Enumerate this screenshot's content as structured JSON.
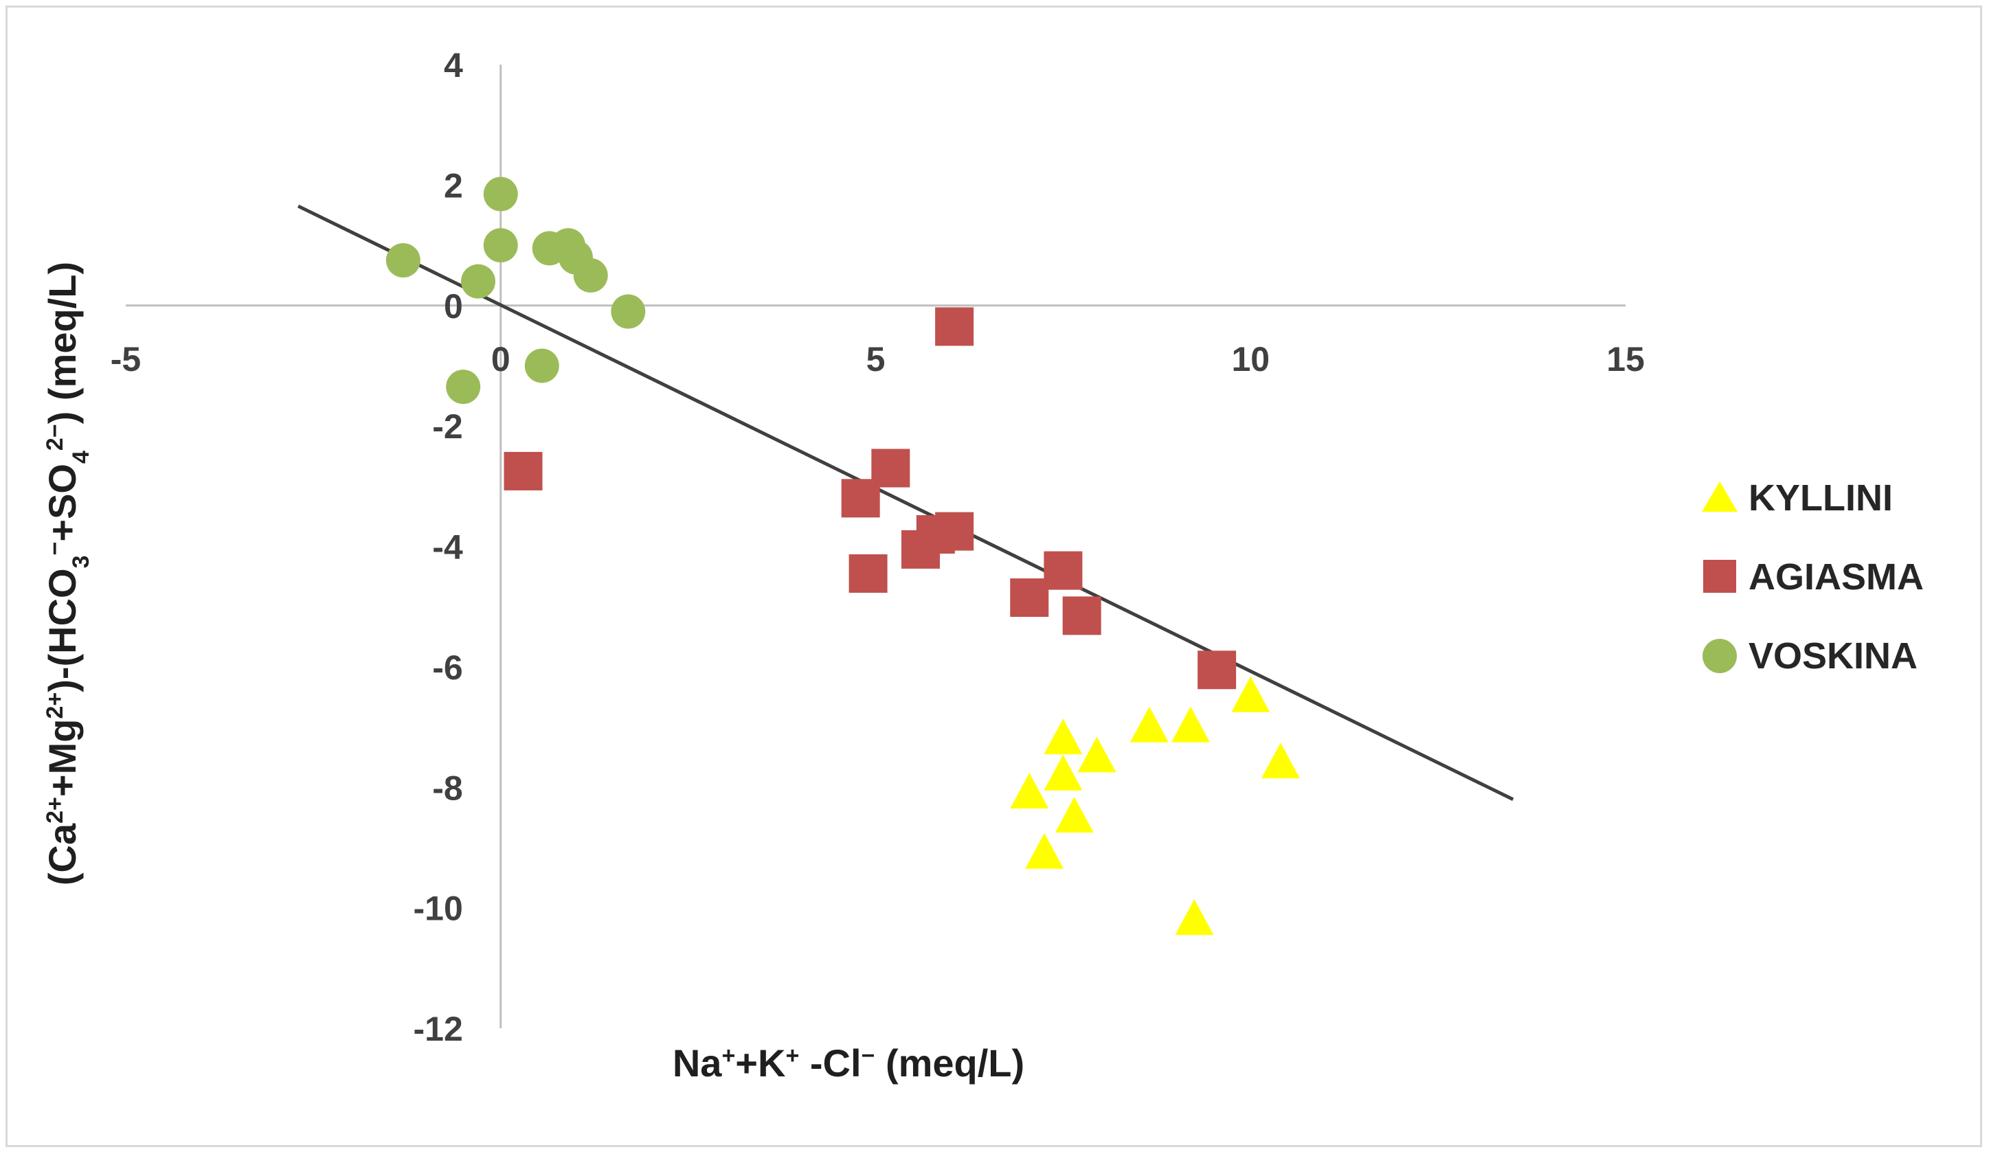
{
  "chart_data": {
    "type": "scatter",
    "title": "",
    "xlabel_parts": [
      "Na",
      "+",
      "+K",
      "+",
      " -Cl",
      "−",
      " (meq/L)"
    ],
    "ylabel_parts": [
      "(Ca",
      "2+",
      "+Mg",
      "2+",
      ")-(HCO",
      "3",
      "−",
      "+SO",
      "4",
      "2−",
      ") (meq/L)"
    ],
    "xlim": [
      -5,
      15
    ],
    "ylim": [
      -12,
      4
    ],
    "x_ticks": [
      -5,
      0,
      5,
      10,
      15
    ],
    "y_ticks": [
      4,
      2,
      0,
      -2,
      -4,
      -6,
      -8,
      -10,
      -12
    ],
    "legend_position": "right",
    "series": [
      {
        "name": "KYLLINI",
        "marker": "triangle",
        "color": "#ffff00",
        "points": [
          [
            7.5,
            -7.2
          ],
          [
            7.5,
            -7.8
          ],
          [
            7.05,
            -8.1
          ],
          [
            7.65,
            -8.5
          ],
          [
            7.95,
            -7.5
          ],
          [
            8.65,
            -7.0
          ],
          [
            9.2,
            -7.0
          ],
          [
            10.0,
            -6.5
          ],
          [
            10.4,
            -7.6
          ],
          [
            7.25,
            -9.1
          ],
          [
            9.25,
            -10.2
          ]
        ]
      },
      {
        "name": "AGIASMA",
        "marker": "square",
        "color": "#c0504d",
        "points": [
          [
            0.3,
            -2.75
          ],
          [
            4.8,
            -3.2
          ],
          [
            4.9,
            -4.45
          ],
          [
            5.2,
            -2.7
          ],
          [
            5.6,
            -4.05
          ],
          [
            5.8,
            -3.8
          ],
          [
            6.05,
            -3.75
          ],
          [
            6.05,
            -0.35
          ],
          [
            7.05,
            -4.85
          ],
          [
            7.5,
            -4.4
          ],
          [
            7.75,
            -5.15
          ],
          [
            9.55,
            -6.05
          ]
        ]
      },
      {
        "name": "VOSKINA",
        "marker": "circle",
        "color": "#9bbb59",
        "points": [
          [
            -1.3,
            0.75
          ],
          [
            -0.3,
            0.4
          ],
          [
            0.0,
            1.85
          ],
          [
            0.0,
            1.0
          ],
          [
            0.65,
            0.95
          ],
          [
            0.9,
            1.0
          ],
          [
            1.0,
            0.8
          ],
          [
            1.2,
            0.5
          ],
          [
            1.7,
            -0.1
          ],
          [
            0.55,
            -1.0
          ],
          [
            -0.5,
            -1.35
          ]
        ]
      }
    ],
    "trendline": {
      "color": "#404040",
      "x_start": -2.7,
      "y_start": 1.65,
      "x_end": 13.5,
      "y_end": -8.2
    }
  }
}
